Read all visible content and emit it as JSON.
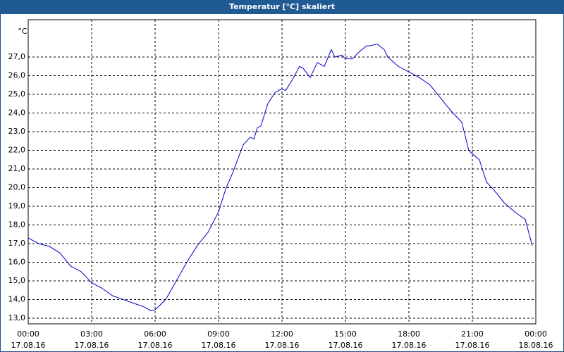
{
  "chart_data": {
    "type": "line",
    "title": "Temperatur [°C] skaliert",
    "y_label": "°C",
    "x": [
      0,
      0.5,
      1,
      1.5,
      2,
      2.5,
      3,
      3.5,
      4,
      4.5,
      5,
      5.5,
      5.8,
      6,
      6.5,
      7,
      7.5,
      8,
      8.5,
      9,
      9.33,
      9.67,
      10,
      10.17,
      10.5,
      10.67,
      10.83,
      11,
      11.33,
      11.67,
      12,
      12.17,
      12.5,
      12.83,
      13,
      13.33,
      13.67,
      14,
      14.33,
      14.5,
      14.83,
      15,
      15.33,
      15.67,
      16,
      16.17,
      16.5,
      16.83,
      17,
      17.5,
      18,
      18.5,
      19,
      19.5,
      20,
      20.5,
      20.83,
      21,
      21.33,
      21.67,
      22,
      22.5,
      23,
      23.5,
      23.83
    ],
    "series": [
      {
        "name": "Temperatur",
        "color": "#0000c8",
        "values": [
          17.3,
          17.0,
          16.85,
          16.5,
          15.8,
          15.5,
          14.9,
          14.6,
          14.2,
          14.0,
          13.8,
          13.6,
          13.4,
          13.45,
          14.0,
          15.0,
          16.0,
          16.9,
          17.6,
          18.7,
          19.9,
          20.8,
          21.8,
          22.3,
          22.7,
          22.6,
          23.2,
          23.3,
          24.5,
          25.1,
          25.3,
          25.2,
          25.8,
          26.5,
          26.4,
          25.9,
          26.7,
          26.5,
          27.4,
          27.0,
          27.1,
          26.9,
          26.9,
          27.3,
          27.6,
          27.6,
          27.7,
          27.4,
          27.0,
          26.5,
          26.2,
          25.9,
          25.5,
          24.8,
          24.1,
          23.5,
          22.0,
          21.8,
          21.5,
          20.3,
          19.9,
          19.2,
          18.7,
          18.3,
          16.9
        ]
      }
    ],
    "xlim": [
      0,
      24
    ],
    "xticks": [
      {
        "value": 0,
        "label": "00:00"
      },
      {
        "value": 3,
        "label": "03:00"
      },
      {
        "value": 6,
        "label": "06:00"
      },
      {
        "value": 9,
        "label": "09:00"
      },
      {
        "value": 12,
        "label": "12:00"
      },
      {
        "value": 15,
        "label": "15:00"
      },
      {
        "value": 18,
        "label": "18:00"
      },
      {
        "value": 21,
        "label": "21:00"
      },
      {
        "value": 24,
        "label": "00:00"
      }
    ],
    "xtick_dates": [
      "17.08.16",
      "17.08.16",
      "17.08.16",
      "17.08.16",
      "17.08.16",
      "17.08.16",
      "17.08.16",
      "17.08.16",
      "18.08.16"
    ],
    "ylim": [
      12.7,
      29.0
    ],
    "yticks": [
      {
        "value": 13,
        "label": "13,0"
      },
      {
        "value": 14,
        "label": "14,0"
      },
      {
        "value": 15,
        "label": "15,0"
      },
      {
        "value": 16,
        "label": "16,0"
      },
      {
        "value": 17,
        "label": "17,0"
      },
      {
        "value": 18,
        "label": "18,0"
      },
      {
        "value": 19,
        "label": "19,0"
      },
      {
        "value": 20,
        "label": "20,0"
      },
      {
        "value": 21,
        "label": "21,0"
      },
      {
        "value": 22,
        "label": "22,0"
      },
      {
        "value": 23,
        "label": "23,0"
      },
      {
        "value": 24,
        "label": "24,0"
      },
      {
        "value": 25,
        "label": "25,0"
      },
      {
        "value": 26,
        "label": "26,0"
      },
      {
        "value": 27,
        "label": "27,0"
      }
    ],
    "grid": true
  }
}
